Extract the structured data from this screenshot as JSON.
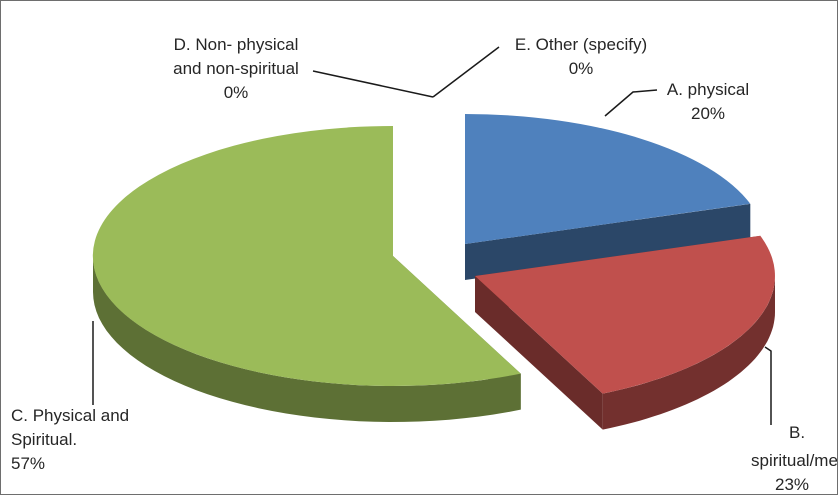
{
  "chart_data": {
    "type": "pie",
    "style": "3d-exploded",
    "title": "",
    "slices": [
      {
        "id": "a",
        "line1": "A. physical",
        "line2": "",
        "pct": "20%",
        "value": 20,
        "color": "#4f81bd"
      },
      {
        "id": "b",
        "line1": "B.",
        "line2": "spiritual/menta",
        "pct": "23%",
        "value": 23,
        "color": "#c0504d"
      },
      {
        "id": "c",
        "line1": "C. Physical and",
        "line2": "Spiritual.",
        "pct": "57%",
        "value": 57,
        "color": "#9bbb59"
      },
      {
        "id": "d",
        "line1": "D. Non- physical",
        "line2": "and non-spiritual",
        "pct": "0%",
        "value": 0,
        "color": "#8064a2"
      },
      {
        "id": "e",
        "line1": "E. Other (specify)",
        "line2": "",
        "pct": "0%",
        "value": 0,
        "color": "#4bacc6"
      }
    ]
  }
}
